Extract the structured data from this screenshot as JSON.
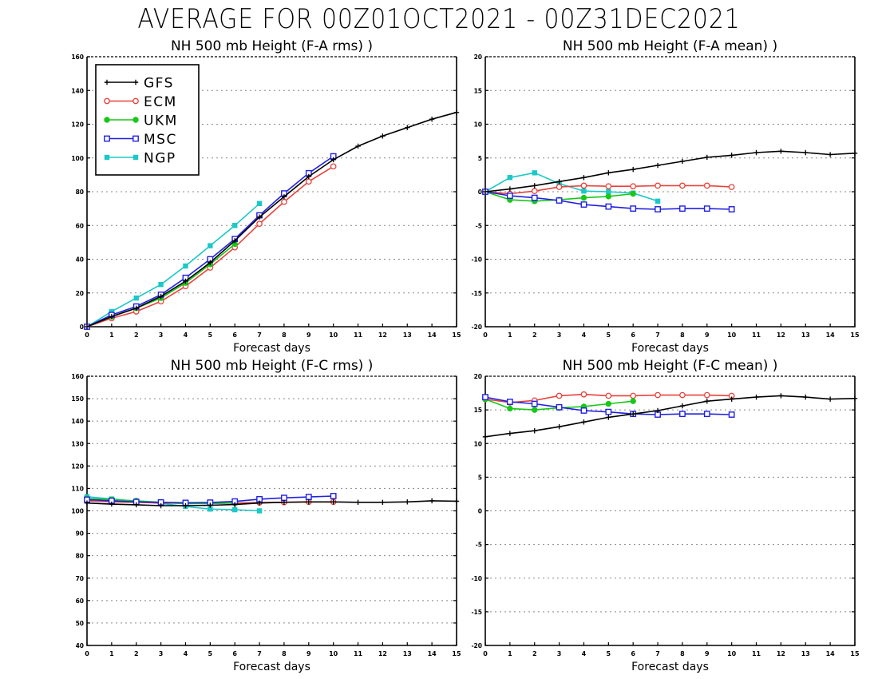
{
  "main_title": "AVERAGE FOR 00Z01OCT2021 - 00Z31DEC2021",
  "colors": {
    "GFS": "#000000",
    "ECM": "#e8413a",
    "UKM": "#18c818",
    "MSC": "#2020e0",
    "NGP": "#1ac8c8"
  },
  "legend_entries": [
    "GFS",
    "ECM",
    "UKM",
    "MSC",
    "NGP"
  ],
  "chart_data": [
    {
      "id": "fa-rms",
      "type": "line",
      "title": "NH 500 mb Height (F-A rms) )",
      "xlabel": "Forecast days",
      "ylabel": "",
      "xlim": [
        0,
        15
      ],
      "ylim": [
        0,
        160
      ],
      "xticks": [
        0,
        1,
        2,
        3,
        4,
        5,
        6,
        7,
        8,
        9,
        10,
        11,
        12,
        13,
        14,
        15
      ],
      "yticks": [
        0,
        20,
        40,
        60,
        80,
        100,
        120,
        140,
        160
      ],
      "grid": "horizontal-dotted",
      "legend": "top-left",
      "series": [
        {
          "name": "GFS",
          "marker": "plus",
          "x": [
            0,
            1,
            2,
            3,
            4,
            5,
            6,
            7,
            8,
            9,
            10,
            11,
            12,
            13,
            14,
            15
          ],
          "y": [
            0,
            6,
            11,
            18,
            27,
            38,
            51,
            65,
            77,
            89,
            99,
            107,
            113,
            118,
            123,
            127
          ]
        },
        {
          "name": "ECM",
          "marker": "circle-open",
          "x": [
            0,
            1,
            2,
            3,
            4,
            5,
            6,
            7,
            8,
            9,
            10
          ],
          "y": [
            0,
            5,
            9,
            15,
            24,
            35,
            47,
            61,
            74,
            86,
            95
          ]
        },
        {
          "name": "UKM",
          "marker": "circle-filled",
          "x": [
            0,
            1,
            2,
            3,
            4,
            5,
            6
          ],
          "y": [
            0,
            6,
            11,
            17,
            26,
            37,
            49
          ]
        },
        {
          "name": "MSC",
          "marker": "square-open",
          "x": [
            0,
            1,
            2,
            3,
            4,
            5,
            6,
            7,
            8,
            9,
            10
          ],
          "y": [
            0,
            7,
            12,
            19,
            29,
            40,
            52,
            66,
            79,
            91,
            101
          ]
        },
        {
          "name": "NGP",
          "marker": "square-filled",
          "x": [
            0,
            1,
            2,
            3,
            4,
            5,
            6,
            7
          ],
          "y": [
            0,
            9,
            17,
            25,
            36,
            48,
            60,
            73
          ]
        }
      ]
    },
    {
      "id": "fa-mean",
      "type": "line",
      "title": "NH 500 mb Height (F-A mean) )",
      "xlabel": "Forecast days",
      "ylabel": "",
      "xlim": [
        0,
        15
      ],
      "ylim": [
        -20,
        20
      ],
      "xticks": [
        0,
        1,
        2,
        3,
        4,
        5,
        6,
        7,
        8,
        9,
        10,
        11,
        12,
        13,
        14,
        15
      ],
      "yticks": [
        -20,
        -15,
        -10,
        -5,
        0,
        5,
        10,
        15,
        20
      ],
      "grid": "horizontal-dotted",
      "series": [
        {
          "name": "GFS",
          "marker": "plus",
          "x": [
            0,
            1,
            2,
            3,
            4,
            5,
            6,
            7,
            8,
            9,
            10,
            11,
            12,
            13,
            14,
            15
          ],
          "y": [
            0,
            0.4,
            0.9,
            1.5,
            2.1,
            2.8,
            3.3,
            3.9,
            4.5,
            5.1,
            5.4,
            5.8,
            6.0,
            5.8,
            5.5,
            5.7
          ]
        },
        {
          "name": "ECM",
          "marker": "circle-open",
          "x": [
            0,
            1,
            2,
            3,
            4,
            5,
            6,
            7,
            8,
            9,
            10
          ],
          "y": [
            0,
            -0.3,
            0.1,
            0.7,
            0.9,
            0.8,
            0.8,
            0.9,
            0.9,
            0.9,
            0.7
          ]
        },
        {
          "name": "UKM",
          "marker": "circle-filled",
          "x": [
            0,
            1,
            2,
            3,
            4,
            5,
            6
          ],
          "y": [
            0,
            -1.2,
            -1.4,
            -1.2,
            -0.9,
            -0.7,
            -0.3
          ]
        },
        {
          "name": "MSC",
          "marker": "square-open",
          "x": [
            0,
            1,
            2,
            3,
            4,
            5,
            6,
            7,
            8,
            9,
            10
          ],
          "y": [
            0,
            -0.6,
            -0.9,
            -1.3,
            -1.9,
            -2.2,
            -2.5,
            -2.6,
            -2.5,
            -2.5,
            -2.6
          ]
        },
        {
          "name": "NGP",
          "marker": "square-filled",
          "x": [
            0,
            1,
            2,
            3,
            4,
            5,
            6,
            7
          ],
          "y": [
            0,
            2.1,
            2.8,
            1.2,
            0.1,
            0,
            -0.2,
            -1.4
          ]
        }
      ]
    },
    {
      "id": "fc-rms",
      "type": "line",
      "title": "NH 500 mb Height (F-C rms) )",
      "xlabel": "Forecast days",
      "ylabel": "",
      "xlim": [
        0,
        15
      ],
      "ylim": [
        40,
        160
      ],
      "xticks": [
        0,
        1,
        2,
        3,
        4,
        5,
        6,
        7,
        8,
        9,
        10,
        11,
        12,
        13,
        14,
        15
      ],
      "yticks": [
        40,
        50,
        60,
        70,
        80,
        90,
        100,
        110,
        120,
        130,
        140,
        150,
        160
      ],
      "grid": "horizontal-dotted",
      "series": [
        {
          "name": "GFS",
          "marker": "plus",
          "x": [
            0,
            1,
            2,
            3,
            4,
            5,
            6,
            7,
            8,
            9,
            10,
            11,
            12,
            13,
            14,
            15
          ],
          "y": [
            103.5,
            103,
            102.7,
            102.3,
            102.3,
            102.5,
            102.8,
            103.5,
            103.8,
            104,
            104,
            103.8,
            103.8,
            104,
            104.5,
            104.3
          ]
        },
        {
          "name": "ECM",
          "marker": "circle-open",
          "x": [
            0,
            1,
            2,
            3,
            4,
            5,
            6,
            7,
            8,
            9,
            10
          ],
          "y": [
            104.5,
            104,
            103.8,
            103.5,
            103.3,
            103.3,
            103.5,
            103.7,
            103.8,
            104,
            104
          ]
        },
        {
          "name": "UKM",
          "marker": "circle-filled",
          "x": [
            0,
            1,
            2,
            3,
            4,
            5,
            6
          ],
          "y": [
            105.5,
            105,
            104.5,
            103.8,
            103.2,
            103.3,
            103.5
          ]
        },
        {
          "name": "MSC",
          "marker": "square-open",
          "x": [
            0,
            1,
            2,
            3,
            4,
            5,
            6,
            7,
            8,
            9,
            10
          ],
          "y": [
            105,
            104.5,
            104,
            103.8,
            103.6,
            103.7,
            104.2,
            105.2,
            105.8,
            106.2,
            106.6
          ]
        },
        {
          "name": "NGP",
          "marker": "square-filled",
          "x": [
            0,
            1,
            2,
            3,
            4,
            5,
            6,
            7
          ],
          "y": [
            106.3,
            105.3,
            104.3,
            103.3,
            102,
            100.8,
            100.5,
            100
          ]
        }
      ]
    },
    {
      "id": "fc-mean",
      "type": "line",
      "title": "NH 500 mb Height (F-C mean) )",
      "xlabel": "Forecast days",
      "ylabel": "",
      "xlim": [
        0,
        15
      ],
      "ylim": [
        -20,
        20
      ],
      "xticks": [
        0,
        1,
        2,
        3,
        4,
        5,
        6,
        7,
        8,
        9,
        10,
        11,
        12,
        13,
        14,
        15
      ],
      "yticks": [
        -20,
        -15,
        -10,
        -5,
        0,
        5,
        10,
        15,
        20
      ],
      "grid": "horizontal-dotted",
      "series": [
        {
          "name": "GFS",
          "marker": "plus",
          "x": [
            0,
            1,
            2,
            3,
            4,
            5,
            6,
            7,
            8,
            9,
            10,
            11,
            12,
            13,
            14,
            15
          ],
          "y": [
            11,
            11.5,
            11.9,
            12.5,
            13.2,
            13.9,
            14.4,
            14.9,
            15.6,
            16.3,
            16.6,
            16.9,
            17.1,
            16.9,
            16.6,
            16.7
          ]
        },
        {
          "name": "ECM",
          "marker": "circle-open",
          "x": [
            0,
            1,
            2,
            3,
            4,
            5,
            6,
            7,
            8,
            9,
            10
          ],
          "y": [
            16.6,
            16.1,
            16.4,
            17.1,
            17.3,
            17.1,
            17.1,
            17.2,
            17.2,
            17.2,
            17.1
          ]
        },
        {
          "name": "UKM",
          "marker": "circle-filled",
          "x": [
            0,
            1,
            2,
            3,
            4,
            5,
            6
          ],
          "y": [
            16.6,
            15.2,
            15.0,
            15.3,
            15.5,
            15.9,
            16.3
          ]
        },
        {
          "name": "MSC",
          "marker": "square-open",
          "x": [
            0,
            1,
            2,
            3,
            4,
            5,
            6,
            7,
            8,
            9,
            10
          ],
          "y": [
            16.9,
            16.2,
            15.9,
            15.4,
            14.9,
            14.7,
            14.4,
            14.3,
            14.4,
            14.4,
            14.3
          ]
        },
        {
          "name": "NGP",
          "marker": "square-filled",
          "x": [],
          "y": []
        }
      ]
    }
  ]
}
